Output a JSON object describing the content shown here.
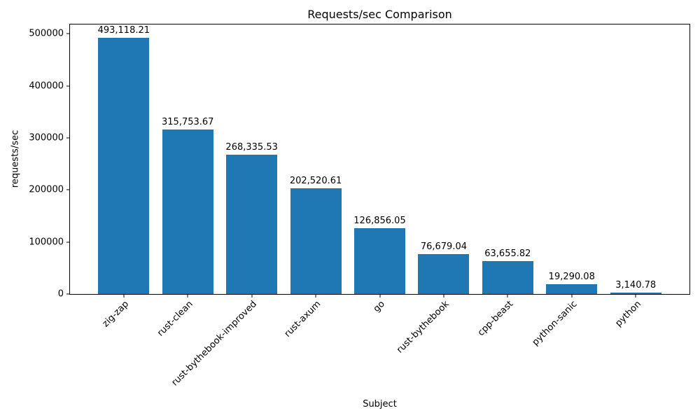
{
  "chart_data": {
    "type": "bar",
    "title": "Requests/sec Comparison",
    "xlabel": "Subject",
    "ylabel": "requests/sec",
    "categories": [
      "zig-zap",
      "rust-clean",
      "rust-bythebook-improved",
      "rust-axum",
      "go",
      "rust-bythebook",
      "cpp-beast",
      "python-sanic",
      "python"
    ],
    "values": [
      493118.21,
      315753.67,
      268335.53,
      202520.61,
      126856.05,
      76679.04,
      63655.82,
      19290.08,
      3140.78
    ],
    "value_labels": [
      "493,118.21",
      "315,753.67",
      "268,335.53",
      "202,520.61",
      "126,856.05",
      "76,679.04",
      "63,655.82",
      "19,290.08",
      "3,140.78"
    ],
    "yticks": [
      0,
      100000,
      200000,
      300000,
      400000,
      500000
    ],
    "ytick_labels": [
      "0",
      "100000",
      "200000",
      "300000",
      "400000",
      "500000"
    ],
    "ylim": [
      0,
      518000
    ],
    "x_range": [
      -0.84,
      8.84
    ],
    "bar_width_frac": 0.8,
    "bar_color": "#1f77b4",
    "grid": false,
    "legend": null
  }
}
